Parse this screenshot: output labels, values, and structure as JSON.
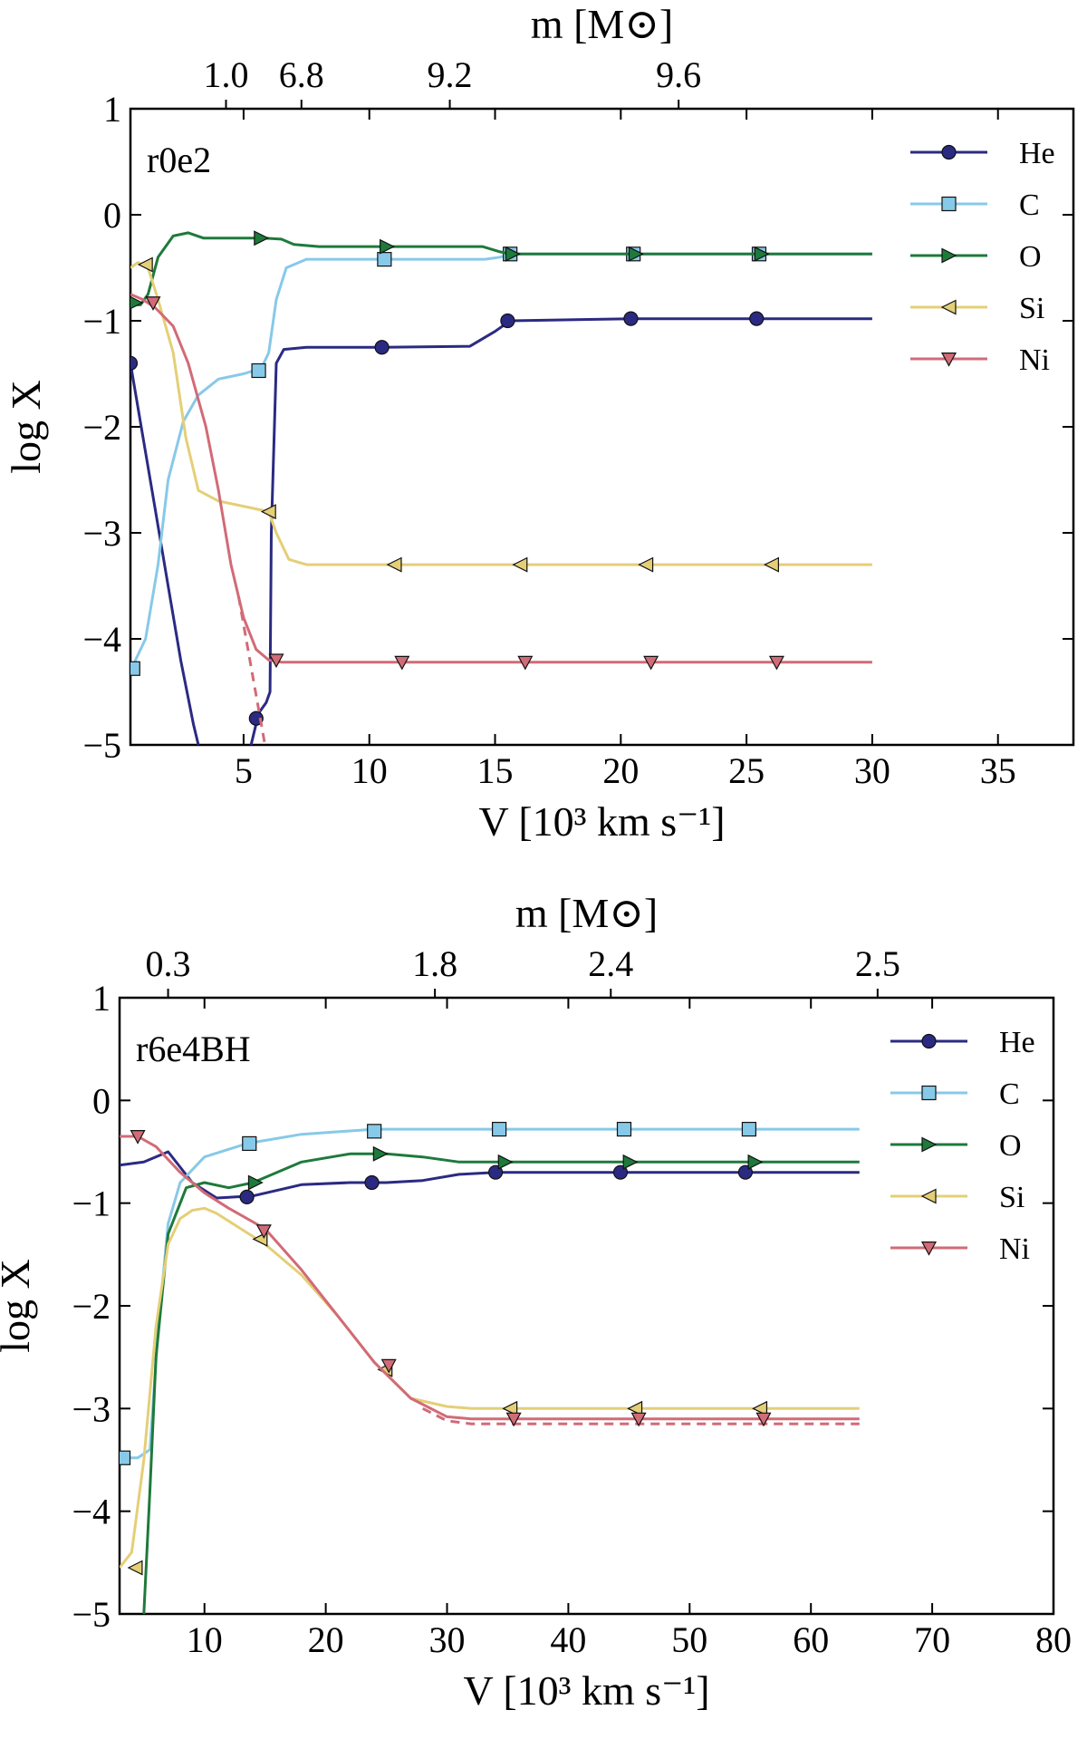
{
  "chart_data": [
    {
      "type": "line",
      "panel_label": "r0e2",
      "xlabel": "V [10³ km s⁻¹]",
      "ylabel": "log X",
      "top_xlabel": "m [M⊙]",
      "xlim": [
        0.5,
        38
      ],
      "ylim": [
        -5,
        1
      ],
      "x_ticks": [
        5,
        10,
        15,
        20,
        25,
        30,
        35
      ],
      "y_ticks": [
        1,
        0,
        -1,
        -2,
        -3,
        -4,
        -5
      ],
      "top_ticks": [
        {
          "label": "1.0",
          "x": 4.3
        },
        {
          "label": "6.8",
          "x": 7.3
        },
        {
          "label": "9.2",
          "x": 13.2
        },
        {
          "label": "9.6",
          "x": 22.3
        }
      ],
      "legend_position": "upper right",
      "series": [
        {
          "name": "He",
          "color": "#2b2a82",
          "marker": "circle",
          "x": [
            0.5,
            1.0,
            1.5,
            2.0,
            2.5,
            3.0,
            3.2,
            null,
            5.3,
            5.6,
            5.9,
            6.05,
            6.1,
            6.3,
            6.6,
            7.5,
            10.5,
            14.0,
            15.0,
            15.6,
            20.4,
            25.4,
            30
          ],
          "y": [
            -1.4,
            -2.1,
            -2.8,
            -3.5,
            -4.2,
            -4.8,
            -5.0,
            null,
            -5.0,
            -4.7,
            -4.6,
            -4.5,
            -3.0,
            -1.4,
            -1.27,
            -1.25,
            -1.25,
            -1.24,
            -1.1,
            -1.0,
            -0.98,
            -0.98,
            -0.98
          ],
          "marker_x": [
            0.5,
            5.5,
            10.5,
            15.5,
            20.4,
            25.4
          ],
          "marker_y": [
            -1.4,
            -4.75,
            -1.25,
            -1.0,
            -0.98,
            -0.98
          ]
        },
        {
          "name": "C",
          "color": "#87c9e8",
          "marker": "square",
          "x": [
            0.5,
            0.7,
            1.1,
            1.6,
            2.0,
            2.6,
            3.2,
            4.0,
            5.0,
            5.7,
            6.0,
            6.3,
            6.7,
            7.5,
            10.6,
            14.6,
            15.2,
            15.6,
            20.5,
            25.5,
            30
          ],
          "y": [
            -4.3,
            -4.2,
            -4.0,
            -3.3,
            -2.5,
            -1.95,
            -1.7,
            -1.55,
            -1.5,
            -1.45,
            -1.3,
            -0.8,
            -0.5,
            -0.42,
            -0.42,
            -0.42,
            -0.4,
            -0.37,
            -0.37,
            -0.37,
            -0.37
          ],
          "marker_x": [
            0.6,
            5.6,
            10.6,
            15.6,
            20.5,
            25.5
          ],
          "marker_y": [
            -4.28,
            -1.47,
            -0.42,
            -0.37,
            -0.37,
            -0.37
          ]
        },
        {
          "name": "O",
          "color": "#1e7a3b",
          "marker": "triangle-right",
          "x": [
            0.5,
            0.9,
            1.2,
            1.6,
            2.2,
            2.8,
            3.4,
            4.5,
            5.8,
            6.5,
            7.0,
            8.0,
            11.2,
            14.5,
            15.2,
            15.6,
            20.6,
            25.6,
            30
          ],
          "y": [
            -0.85,
            -0.85,
            -0.75,
            -0.4,
            -0.2,
            -0.17,
            -0.22,
            -0.22,
            -0.22,
            -0.23,
            -0.28,
            -0.3,
            -0.3,
            -0.3,
            -0.35,
            -0.37,
            -0.37,
            -0.37,
            -0.37
          ],
          "marker_x": [
            0.7,
            5.7,
            10.7,
            15.7,
            20.6,
            25.6
          ],
          "marker_y": [
            -0.83,
            -0.22,
            -0.3,
            -0.37,
            -0.37,
            -0.37
          ]
        },
        {
          "name": "Si",
          "color": "#e4cf77",
          "marker": "triangle-left",
          "x": [
            0.5,
            0.8,
            1.2,
            1.6,
            2.2,
            2.7,
            3.2,
            4.0,
            5.2,
            6.0,
            6.3,
            6.8,
            7.5,
            11.0,
            16.0,
            21.0,
            26.0,
            30
          ],
          "y": [
            -0.5,
            -0.45,
            -0.5,
            -0.8,
            -1.3,
            -2.1,
            -2.6,
            -2.7,
            -2.76,
            -2.8,
            -3.0,
            -3.25,
            -3.3,
            -3.3,
            -3.3,
            -3.3,
            -3.3,
            -3.3
          ],
          "marker_x": [
            1.1,
            6.0,
            11.0,
            16.0,
            21.0,
            26.0
          ],
          "marker_y": [
            -0.47,
            -2.8,
            -3.3,
            -3.3,
            -3.3,
            -3.3
          ]
        },
        {
          "name": "Ni",
          "color": "#d16b77",
          "marker": "triangle-down",
          "x": [
            0.5,
            1.0,
            1.5,
            2.2,
            2.8,
            3.5,
            4.0,
            4.5,
            5.0,
            5.5,
            6.0,
            6.5,
            7.5,
            11.3,
            16.2,
            21.2,
            26.2,
            30
          ],
          "y": [
            -0.75,
            -0.8,
            -0.88,
            -1.05,
            -1.4,
            -2.0,
            -2.6,
            -3.3,
            -3.8,
            -4.1,
            -4.2,
            -4.22,
            -4.22,
            -4.22,
            -4.22,
            -4.22,
            -4.22,
            -4.22
          ],
          "marker_x": [
            1.4,
            6.3,
            11.3,
            16.2,
            21.2,
            26.2
          ],
          "marker_y": [
            -0.83,
            -4.2,
            -4.22,
            -4.22,
            -4.22,
            -4.22
          ],
          "dashed": {
            "x": [
              4.8,
              5.1,
              5.4,
              5.7,
              5.85
            ],
            "y": [
              -3.6,
              -4.0,
              -4.4,
              -4.8,
              -5.0
            ]
          }
        }
      ]
    },
    {
      "type": "line",
      "panel_label": "r6e4BH",
      "xlabel": "V [10³ km s⁻¹]",
      "ylabel": "log X",
      "top_xlabel": "m [M⊙]",
      "xlim": [
        3,
        80
      ],
      "ylim": [
        -5,
        1
      ],
      "x_ticks": [
        10,
        20,
        30,
        40,
        50,
        60,
        70,
        80
      ],
      "y_ticks": [
        1,
        0,
        -1,
        -2,
        -3,
        -4,
        -5
      ],
      "top_ticks": [
        {
          "label": "0.3",
          "x": 7.0
        },
        {
          "label": "1.8",
          "x": 29.0
        },
        {
          "label": "2.4",
          "x": 43.5
        },
        {
          "label": "2.5",
          "x": 65.5
        }
      ],
      "legend_position": "upper right",
      "series": [
        {
          "name": "He",
          "color": "#2b2a82",
          "marker": "circle",
          "x": [
            3,
            5,
            7,
            9,
            11,
            14,
            18,
            22,
            25,
            28,
            31,
            34,
            44,
            54,
            64
          ],
          "y": [
            -0.63,
            -0.6,
            -0.5,
            -0.8,
            -0.95,
            -0.93,
            -0.82,
            -0.8,
            -0.8,
            -0.78,
            -0.72,
            -0.7,
            -0.7,
            -0.7,
            -0.7
          ],
          "marker_x": [
            13.5,
            23.8,
            34.0,
            44.3,
            54.6
          ],
          "marker_y": [
            -0.94,
            -0.8,
            -0.7,
            -0.7,
            -0.7
          ]
        },
        {
          "name": "C",
          "color": "#87c9e8",
          "marker": "square",
          "x": [
            3,
            4.5,
            5.5,
            6.2,
            7,
            8,
            10,
            13.5,
            18,
            24,
            34,
            44,
            54,
            64
          ],
          "y": [
            -3.48,
            -3.48,
            -3.4,
            -2.2,
            -1.2,
            -0.8,
            -0.55,
            -0.42,
            -0.33,
            -0.28,
            -0.28,
            -0.28,
            -0.28,
            -0.28
          ],
          "marker_x": [
            3.3,
            13.7,
            24.0,
            34.3,
            44.6,
            54.9
          ],
          "marker_y": [
            -3.48,
            -0.42,
            -0.3,
            -0.28,
            -0.28,
            -0.28
          ]
        },
        {
          "name": "O",
          "color": "#1e7a3b",
          "marker": "triangle-right",
          "x": [
            5.0,
            5.5,
            6.0,
            7.0,
            8.5,
            10,
            12,
            14,
            18,
            22,
            25,
            28,
            31,
            35,
            45,
            55,
            64
          ],
          "y": [
            -5.0,
            -3.8,
            -2.5,
            -1.3,
            -0.85,
            -0.8,
            -0.85,
            -0.8,
            -0.6,
            -0.52,
            -0.52,
            -0.55,
            -0.6,
            -0.6,
            -0.6,
            -0.6,
            -0.6
          ],
          "marker_x": [
            14.2,
            24.5,
            34.8,
            45.1,
            55.4
          ],
          "marker_y": [
            -0.8,
            -0.52,
            -0.6,
            -0.6,
            -0.6
          ]
        },
        {
          "name": "Si",
          "color": "#e4cf77",
          "marker": "triangle-left",
          "x": [
            3,
            4,
            5,
            6,
            7,
            8,
            9,
            10,
            11,
            13,
            15,
            18,
            21,
            24,
            27,
            30,
            32,
            35,
            45,
            55,
            64
          ],
          "y": [
            -4.55,
            -4.4,
            -3.5,
            -2.2,
            -1.4,
            -1.15,
            -1.07,
            -1.05,
            -1.1,
            -1.25,
            -1.4,
            -1.7,
            -2.1,
            -2.55,
            -2.9,
            -2.98,
            -3.0,
            -3.0,
            -3.0,
            -3.0,
            -3.0
          ],
          "marker_x": [
            4.3,
            14.6,
            24.9,
            35.2,
            45.5,
            55.8
          ],
          "marker_y": [
            -4.55,
            -1.35,
            -2.62,
            -3.0,
            -3.0,
            -3.0
          ]
        },
        {
          "name": "Ni",
          "color": "#d16b77",
          "marker": "triangle-down",
          "x": [
            3,
            4.5,
            6,
            8,
            10,
            12,
            15,
            18,
            21,
            24,
            27,
            30,
            32,
            35,
            45,
            55,
            64
          ],
          "y": [
            -0.35,
            -0.35,
            -0.45,
            -0.7,
            -0.9,
            -1.05,
            -1.25,
            -1.65,
            -2.1,
            -2.55,
            -2.9,
            -3.08,
            -3.1,
            -3.1,
            -3.1,
            -3.1,
            -3.1
          ],
          "marker_x": [
            4.5,
            14.9,
            25.2,
            35.5,
            45.8,
            56.1
          ],
          "marker_y": [
            -0.35,
            -1.27,
            -2.58,
            -3.1,
            -3.1,
            -3.1
          ],
          "dashed": {
            "x": [
              28,
              30,
              32,
              35,
              64
            ],
            "y": [
              -3.0,
              -3.12,
              -3.15,
              -3.15,
              -3.15
            ]
          }
        }
      ]
    }
  ]
}
